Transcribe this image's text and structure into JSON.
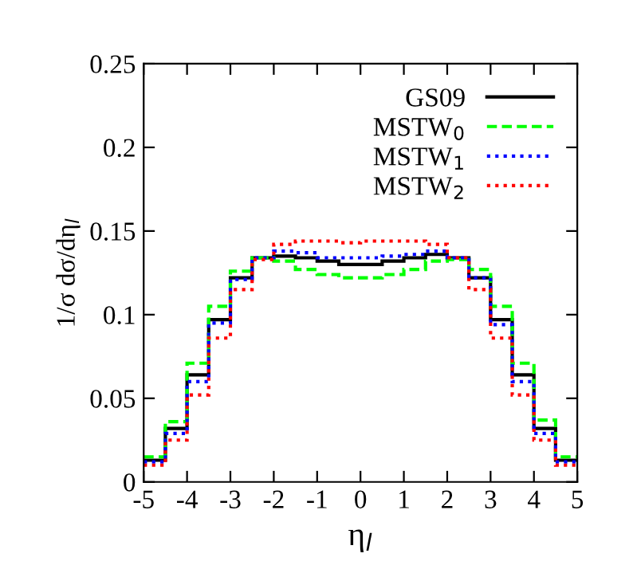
{
  "chart_data": {
    "type": "histogram",
    "xlabel": "η$_{l}$",
    "ylabel": "1/σ dσ/dη$_{l}$",
    "bins": [
      -5,
      -4.5,
      -4,
      -3.5,
      -3,
      -2.5,
      -2,
      -1.5,
      -1,
      -0.5,
      0,
      0.5,
      1,
      1.5,
      2,
      2.5,
      3,
      3.5,
      4,
      4.5,
      5
    ],
    "series": [
      {
        "name": "GS09",
        "color": "#000000",
        "line_style": "solid",
        "values": [
          0.013,
          0.032,
          0.064,
          0.097,
          0.122,
          0.134,
          0.135,
          0.134,
          0.132,
          0.13,
          0.13,
          0.132,
          0.134,
          0.136,
          0.134,
          0.122,
          0.097,
          0.064,
          0.032,
          0.013
        ]
      },
      {
        "name": "MSTW$_{0}$",
        "color": "#00ff00",
        "line_style": "dashed",
        "values": [
          0.015,
          0.036,
          0.071,
          0.105,
          0.126,
          0.134,
          0.132,
          0.127,
          0.124,
          0.122,
          0.122,
          0.124,
          0.127,
          0.132,
          0.133,
          0.127,
          0.105,
          0.071,
          0.037,
          0.015
        ]
      },
      {
        "name": "MSTW$_{1}$",
        "color": "#0000ff",
        "line_style": "dotted",
        "values": [
          0.012,
          0.029,
          0.06,
          0.095,
          0.121,
          0.134,
          0.138,
          0.137,
          0.134,
          0.134,
          0.134,
          0.135,
          0.136,
          0.138,
          0.134,
          0.122,
          0.094,
          0.06,
          0.029,
          0.012
        ]
      },
      {
        "name": "MSTW$_{2}$",
        "color": "#ff0000",
        "line_style": "dotted",
        "values": [
          0.01,
          0.025,
          0.052,
          0.086,
          0.115,
          0.133,
          0.142,
          0.144,
          0.144,
          0.143,
          0.144,
          0.144,
          0.144,
          0.142,
          0.134,
          0.115,
          0.086,
          0.052,
          0.025,
          0.01
        ]
      }
    ],
    "xlim": [
      -5,
      5
    ],
    "ylim": [
      0,
      0.25
    ],
    "xticks": [
      -5,
      -4,
      -3,
      -2,
      -1,
      0,
      1,
      2,
      3,
      4,
      5
    ],
    "yticks": [
      0,
      0.05,
      0.1,
      0.15,
      0.2,
      0.25
    ],
    "legend": "top right",
    "grid": false
  }
}
